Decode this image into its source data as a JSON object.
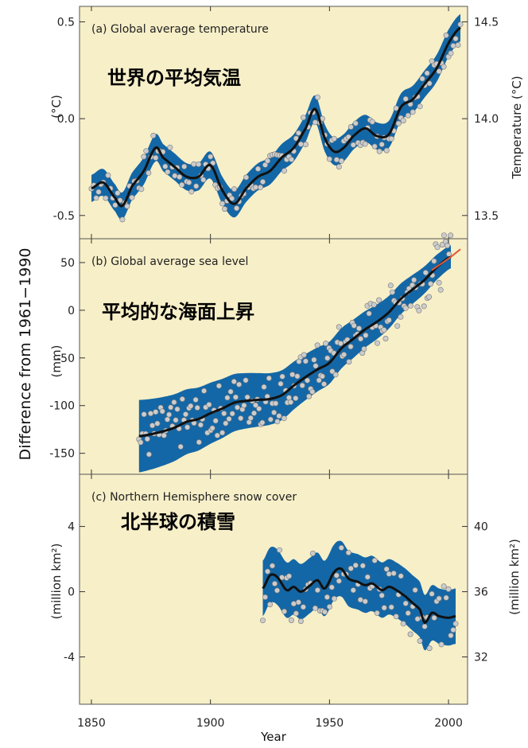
{
  "shared": {
    "xlabel": "Year",
    "ylabel": "Difference from 1961−1990",
    "xlim": [
      1845,
      2008
    ],
    "xticks": [
      "1850",
      "1900",
      "1950",
      "2000"
    ],
    "colors": {
      "background": "#f7efc8",
      "band": "#1467a6",
      "line": "#111111",
      "points": "#cccccc",
      "recent": "#e05a3a"
    }
  },
  "chart_data": [
    {
      "type": "line",
      "title": "(a) Global average temperature",
      "overlay_label": "世界の平均気温",
      "ylabel": "(°C)",
      "ylabel_right": "Temperature (°C)",
      "ylim": [
        -0.62,
        0.58
      ],
      "yticks": [
        "0.5",
        "0.0",
        "-0.5"
      ],
      "yticks_right": [
        "14.5",
        "14.0",
        "13.5"
      ],
      "right_offset": 14.0,
      "band_halfwidth": 0.07,
      "x": [
        1850,
        1855,
        1860,
        1863,
        1867,
        1872,
        1877,
        1880,
        1885,
        1890,
        1895,
        1900,
        1905,
        1910,
        1915,
        1920,
        1925,
        1930,
        1935,
        1940,
        1944,
        1948,
        1952,
        1956,
        1960,
        1965,
        1970,
        1975,
        1980,
        1985,
        1990,
        1995,
        2000,
        2005
      ],
      "values": [
        -0.36,
        -0.33,
        -0.41,
        -0.45,
        -0.35,
        -0.27,
        -0.15,
        -0.2,
        -0.25,
        -0.3,
        -0.3,
        -0.24,
        -0.37,
        -0.44,
        -0.36,
        -0.3,
        -0.27,
        -0.2,
        -0.15,
        -0.05,
        0.05,
        -0.1,
        -0.17,
        -0.15,
        -0.09,
        -0.05,
        -0.09,
        -0.08,
        0.06,
        0.1,
        0.18,
        0.26,
        0.39,
        0.47
      ]
    },
    {
      "type": "line",
      "title": "(b) Global average sea level",
      "overlay_label": "平均的な海面上昇",
      "ylabel": "(mm)",
      "ylim": [
        -172,
        75
      ],
      "yticks": [
        "50",
        "0",
        "-50",
        "-100",
        "-150"
      ],
      "band_halfwidth_start": 38,
      "band_halfwidth_end": 12,
      "x": [
        1870,
        1875,
        1880,
        1885,
        1890,
        1895,
        1900,
        1905,
        1910,
        1915,
        1920,
        1925,
        1930,
        1935,
        1940,
        1945,
        1950,
        1955,
        1960,
        1965,
        1970,
        1975,
        1980,
        1985,
        1990,
        1995,
        2001
      ],
      "values": [
        -132,
        -130,
        -127,
        -123,
        -117,
        -114,
        -108,
        -103,
        -97,
        -95,
        -94,
        -93,
        -89,
        -79,
        -70,
        -62,
        -55,
        -40,
        -30,
        -20,
        -12,
        -2,
        12,
        22,
        32,
        45,
        56
      ],
      "recent_x": [
        1993,
        1997,
        2001,
        2005
      ],
      "recent_values": [
        42,
        49,
        56,
        64
      ]
    },
    {
      "type": "line",
      "title": "(c) Northern Hemisphere snow cover",
      "overlay_label": "北半球の積雪",
      "ylabel": "(million km²)",
      "ylabel_right": "(million km²)",
      "ylim": [
        -6.9,
        7.2
      ],
      "yticks": [
        "4",
        "0",
        "-4"
      ],
      "yticks_right": [
        "40",
        "36",
        "32"
      ],
      "right_offset": 36,
      "band_halfwidth": 1.7,
      "x": [
        1922,
        1925,
        1928,
        1932,
        1935,
        1938,
        1942,
        1945,
        1948,
        1952,
        1955,
        1958,
        1962,
        1965,
        1968,
        1972,
        1975,
        1978,
        1982,
        1985,
        1988,
        1990,
        1993,
        1996,
        2000,
        2003
      ],
      "values": [
        0.2,
        1.0,
        0.9,
        0.1,
        0.3,
        0.0,
        0.4,
        0.7,
        0.2,
        1.2,
        1.4,
        0.8,
        0.6,
        0.4,
        0.5,
        0.1,
        0.3,
        0.1,
        -0.3,
        -0.7,
        -1.1,
        -1.9,
        -1.3,
        -1.5,
        -1.6,
        -1.5
      ]
    }
  ]
}
